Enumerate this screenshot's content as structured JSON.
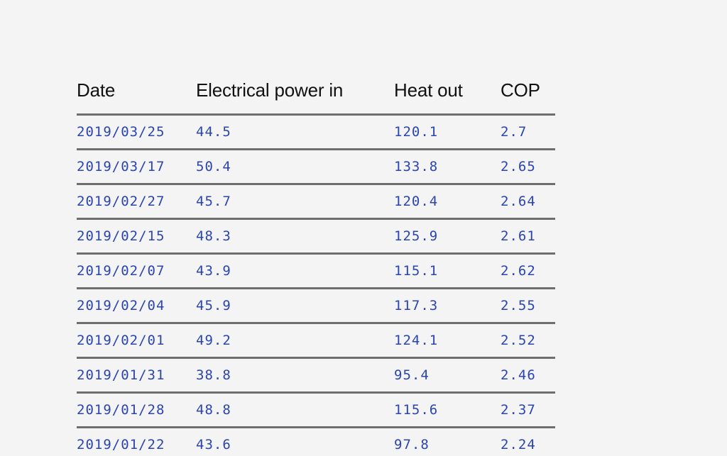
{
  "table": {
    "headers": [
      "Date",
      "Electrical power in",
      "Heat out",
      "COP"
    ],
    "rows": [
      [
        "2019/03/25",
        "44.5",
        "120.1",
        "2.7"
      ],
      [
        "2019/03/17",
        "50.4",
        "133.8",
        "2.65"
      ],
      [
        "2019/02/27",
        "45.7",
        "120.4",
        "2.64"
      ],
      [
        "2019/02/15",
        "48.3",
        "125.9",
        "2.61"
      ],
      [
        "2019/02/07",
        "43.9",
        "115.1",
        "2.62"
      ],
      [
        "2019/02/04",
        "45.9",
        "117.3",
        "2.55"
      ],
      [
        "2019/02/01",
        "49.2",
        "124.1",
        "2.52"
      ],
      [
        "2019/01/31",
        "38.8",
        "95.4",
        "2.46"
      ],
      [
        "2019/01/28",
        "48.8",
        "115.6",
        "2.37"
      ],
      [
        "2019/01/22",
        "43.6",
        "97.8",
        "2.24"
      ]
    ]
  },
  "colors": {
    "background": "#f4f4f4",
    "header_text": "#111111",
    "cell_text": "#2a44b0",
    "rule": "#6e6e6e"
  }
}
